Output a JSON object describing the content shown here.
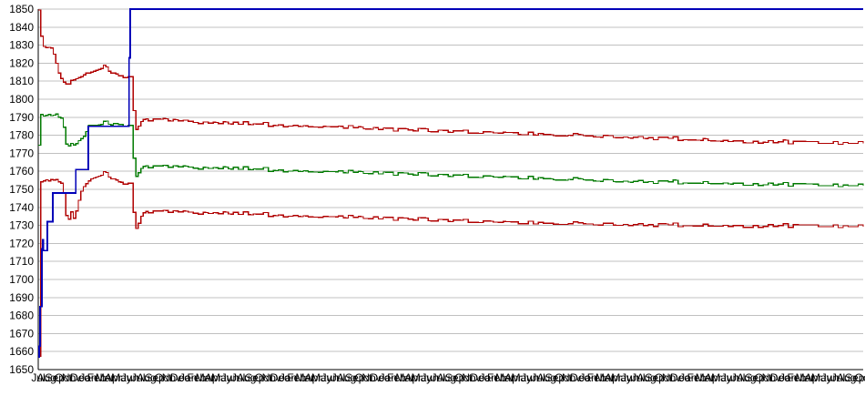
{
  "chart_data": {
    "type": "line",
    "title": "",
    "xlabel": "",
    "ylabel": "",
    "background": "#ffffff",
    "grid_color": "#c0c0c0",
    "axis_color": "#000000",
    "label_color": "#000000",
    "legend": "none",
    "grid": "horizontal-only",
    "y_axis": {
      "min": 1650,
      "max": 1850,
      "tick_step": 10,
      "tick_labels": [
        "1850",
        "1840",
        "1830",
        "1820",
        "1810",
        "1800",
        "1790",
        "1780",
        "1770",
        "1760",
        "1750",
        "1740",
        "1730",
        "1720",
        "1710",
        "1700",
        "1690",
        "1680",
        "1670",
        "1660",
        "1650"
      ]
    },
    "x_axis": {
      "month_labels": [
        "Jul",
        "Aug",
        "Sep",
        "Oct",
        "Nov",
        "Dec",
        "Jan",
        "Feb",
        "Mar",
        "Apr",
        "May",
        "Jun",
        "Jul",
        "Aug",
        "Sep",
        "Oct",
        "Nov",
        "Dec",
        "Jan",
        "Feb",
        "Mar",
        "Apr",
        "May",
        "Jun",
        "Jul",
        "Aug",
        "Sep",
        "Oct",
        "Nov",
        "Dec",
        "Jan",
        "Feb",
        "Mar",
        "Apr",
        "May",
        "Jun",
        "Jul",
        "Aug",
        "Sep",
        "Oct",
        "Nov",
        "Dec",
        "Jan",
        "Feb",
        "Mar",
        "Apr",
        "May",
        "Jun",
        "Jul",
        "Aug",
        "Sep",
        "Oct",
        "Nov",
        "Dec",
        "Jan",
        "Feb",
        "Mar",
        "Apr",
        "May",
        "Jun",
        "Jul",
        "Aug",
        "Sep",
        "Oct",
        "Nov",
        "Dec",
        "Jan",
        "Feb",
        "Mar",
        "Apr",
        "May",
        "Jun",
        "Jul",
        "Aug",
        "Sep",
        "Oct",
        "Nov",
        "Dec",
        "Jan",
        "Feb",
        "Mar",
        "Apr",
        "May",
        "Jun",
        "Jul",
        "Aug",
        "Sep",
        "Oct",
        "Nov",
        "Dec",
        "Jan",
        "Feb",
        "Mar",
        "Apr",
        "May",
        "Jun",
        "Jul",
        "Aug",
        "Sep",
        "Oct"
      ]
    },
    "series": [
      {
        "name": "red-upper-line",
        "color": "#b00000",
        "width": 1.3,
        "noise": 0.9,
        "style": "step",
        "points": [
          [
            0,
            1850
          ],
          [
            0.1,
            1843
          ],
          [
            0.15,
            1847
          ],
          [
            0.25,
            1838
          ],
          [
            0.35,
            1833
          ],
          [
            0.45,
            1836
          ],
          [
            0.55,
            1830
          ],
          [
            0.7,
            1828
          ],
          [
            1.0,
            1829
          ],
          [
            1.3,
            1828
          ],
          [
            1.6,
            1828
          ],
          [
            1.8,
            1824
          ],
          [
            2.1,
            1819
          ],
          [
            2.4,
            1815
          ],
          [
            2.7,
            1812
          ],
          [
            3.0,
            1810
          ],
          [
            3.3,
            1809
          ],
          [
            3.6,
            1808
          ],
          [
            3.9,
            1810
          ],
          [
            4.3,
            1811
          ],
          [
            4.8,
            1812
          ],
          [
            5.4,
            1813
          ],
          [
            6.0,
            1815
          ],
          [
            6.6,
            1816
          ],
          [
            7.2,
            1817
          ],
          [
            7.8,
            1818
          ],
          [
            8.4,
            1816
          ],
          [
            9.0,
            1814
          ],
          [
            9.6,
            1813
          ],
          [
            10.5,
            1813
          ],
          [
            11.3,
            1813
          ],
          [
            11.45,
            1784
          ],
          [
            11.8,
            1783
          ],
          [
            12.4,
            1788
          ],
          [
            13.2,
            1789
          ],
          [
            14.5,
            1789
          ],
          [
            17,
            1788
          ],
          [
            22,
            1787
          ],
          [
            28,
            1786
          ],
          [
            34,
            1785
          ],
          [
            42,
            1783.5
          ],
          [
            50,
            1782
          ],
          [
            57,
            1781
          ],
          [
            64,
            1780
          ],
          [
            71,
            1779
          ],
          [
            78,
            1778
          ],
          [
            83,
            1777
          ],
          [
            88,
            1776.5
          ],
          [
            93,
            1776
          ],
          [
            99,
            1776
          ]
        ]
      },
      {
        "name": "green-middle-line",
        "color": "#007a00",
        "width": 1.3,
        "noise": 0.9,
        "style": "step",
        "points": [
          [
            0,
            1775
          ],
          [
            0.1,
            1797
          ],
          [
            0.25,
            1793
          ],
          [
            0.4,
            1790
          ],
          [
            0.7,
            1791
          ],
          [
            1.2,
            1791
          ],
          [
            1.7,
            1790
          ],
          [
            2.2,
            1791
          ],
          [
            2.7,
            1790
          ],
          [
            2.95,
            1789
          ],
          [
            3.1,
            1777
          ],
          [
            3.4,
            1775
          ],
          [
            3.7,
            1773
          ],
          [
            4.0,
            1776
          ],
          [
            4.3,
            1774
          ],
          [
            4.6,
            1776
          ],
          [
            5.0,
            1778
          ],
          [
            5.4,
            1779
          ],
          [
            5.75,
            1782
          ],
          [
            6.0,
            1786
          ],
          [
            7,
            1786
          ],
          [
            8,
            1787
          ],
          [
            9,
            1786
          ],
          [
            10.5,
            1786
          ],
          [
            11.3,
            1786
          ],
          [
            11.45,
            1758
          ],
          [
            11.8,
            1757
          ],
          [
            12.4,
            1762
          ],
          [
            13.2,
            1763
          ],
          [
            14.5,
            1763
          ],
          [
            17,
            1762.5
          ],
          [
            22,
            1762
          ],
          [
            28,
            1761
          ],
          [
            34,
            1760
          ],
          [
            42,
            1759
          ],
          [
            50,
            1757.5
          ],
          [
            57,
            1756.5
          ],
          [
            64,
            1755.5
          ],
          [
            71,
            1754.5
          ],
          [
            78,
            1754
          ],
          [
            83,
            1753.5
          ],
          [
            88,
            1753
          ],
          [
            93,
            1752.5
          ],
          [
            99,
            1752.5
          ]
        ]
      },
      {
        "name": "red-lower-line",
        "color": "#b00000",
        "width": 1.3,
        "noise": 0.9,
        "style": "step",
        "points": [
          [
            0,
            1658
          ],
          [
            0.05,
            1722
          ],
          [
            0.12,
            1748
          ],
          [
            0.2,
            1755
          ],
          [
            0.5,
            1754
          ],
          [
            0.8,
            1756
          ],
          [
            1.1,
            1754
          ],
          [
            1.5,
            1755
          ],
          [
            1.9,
            1754
          ],
          [
            2.3,
            1755
          ],
          [
            2.7,
            1754
          ],
          [
            2.95,
            1753
          ],
          [
            3.1,
            1740
          ],
          [
            3.3,
            1736
          ],
          [
            3.6,
            1733
          ],
          [
            3.9,
            1737
          ],
          [
            4.2,
            1734
          ],
          [
            4.5,
            1738
          ],
          [
            4.8,
            1744
          ],
          [
            5.1,
            1749
          ],
          [
            5.4,
            1751
          ],
          [
            5.75,
            1753
          ],
          [
            6.1,
            1756
          ],
          [
            6.7,
            1757
          ],
          [
            7.3,
            1758
          ],
          [
            7.9,
            1759
          ],
          [
            8.5,
            1757
          ],
          [
            9.1,
            1755
          ],
          [
            9.7,
            1754
          ],
          [
            10.5,
            1754
          ],
          [
            11.3,
            1754
          ],
          [
            11.45,
            1729
          ],
          [
            11.8,
            1728
          ],
          [
            12.4,
            1736
          ],
          [
            13.2,
            1738
          ],
          [
            14.5,
            1738
          ],
          [
            17,
            1737.5
          ],
          [
            22,
            1737
          ],
          [
            28,
            1736
          ],
          [
            34,
            1735
          ],
          [
            42,
            1734
          ],
          [
            50,
            1732.5
          ],
          [
            57,
            1731.5
          ],
          [
            64,
            1731
          ],
          [
            71,
            1730.5
          ],
          [
            78,
            1730.3
          ],
          [
            83,
            1730
          ],
          [
            88,
            1730
          ],
          [
            93,
            1729.8
          ],
          [
            99,
            1729.8
          ]
        ]
      },
      {
        "name": "blue-step-line",
        "color": "#0000b8",
        "width": 1.8,
        "noise": 0,
        "style": "step",
        "points": [
          [
            0,
            1657
          ],
          [
            0.1,
            1663
          ],
          [
            0.22,
            1685
          ],
          [
            0.45,
            1717
          ],
          [
            0.55,
            1722
          ],
          [
            0.62,
            1716
          ],
          [
            1.1,
            1732
          ],
          [
            1.75,
            1748
          ],
          [
            4.5,
            1761
          ],
          [
            6.0,
            1785
          ],
          [
            10.9,
            1823
          ],
          [
            11.05,
            1850
          ],
          [
            99,
            1850
          ]
        ]
      }
    ]
  }
}
